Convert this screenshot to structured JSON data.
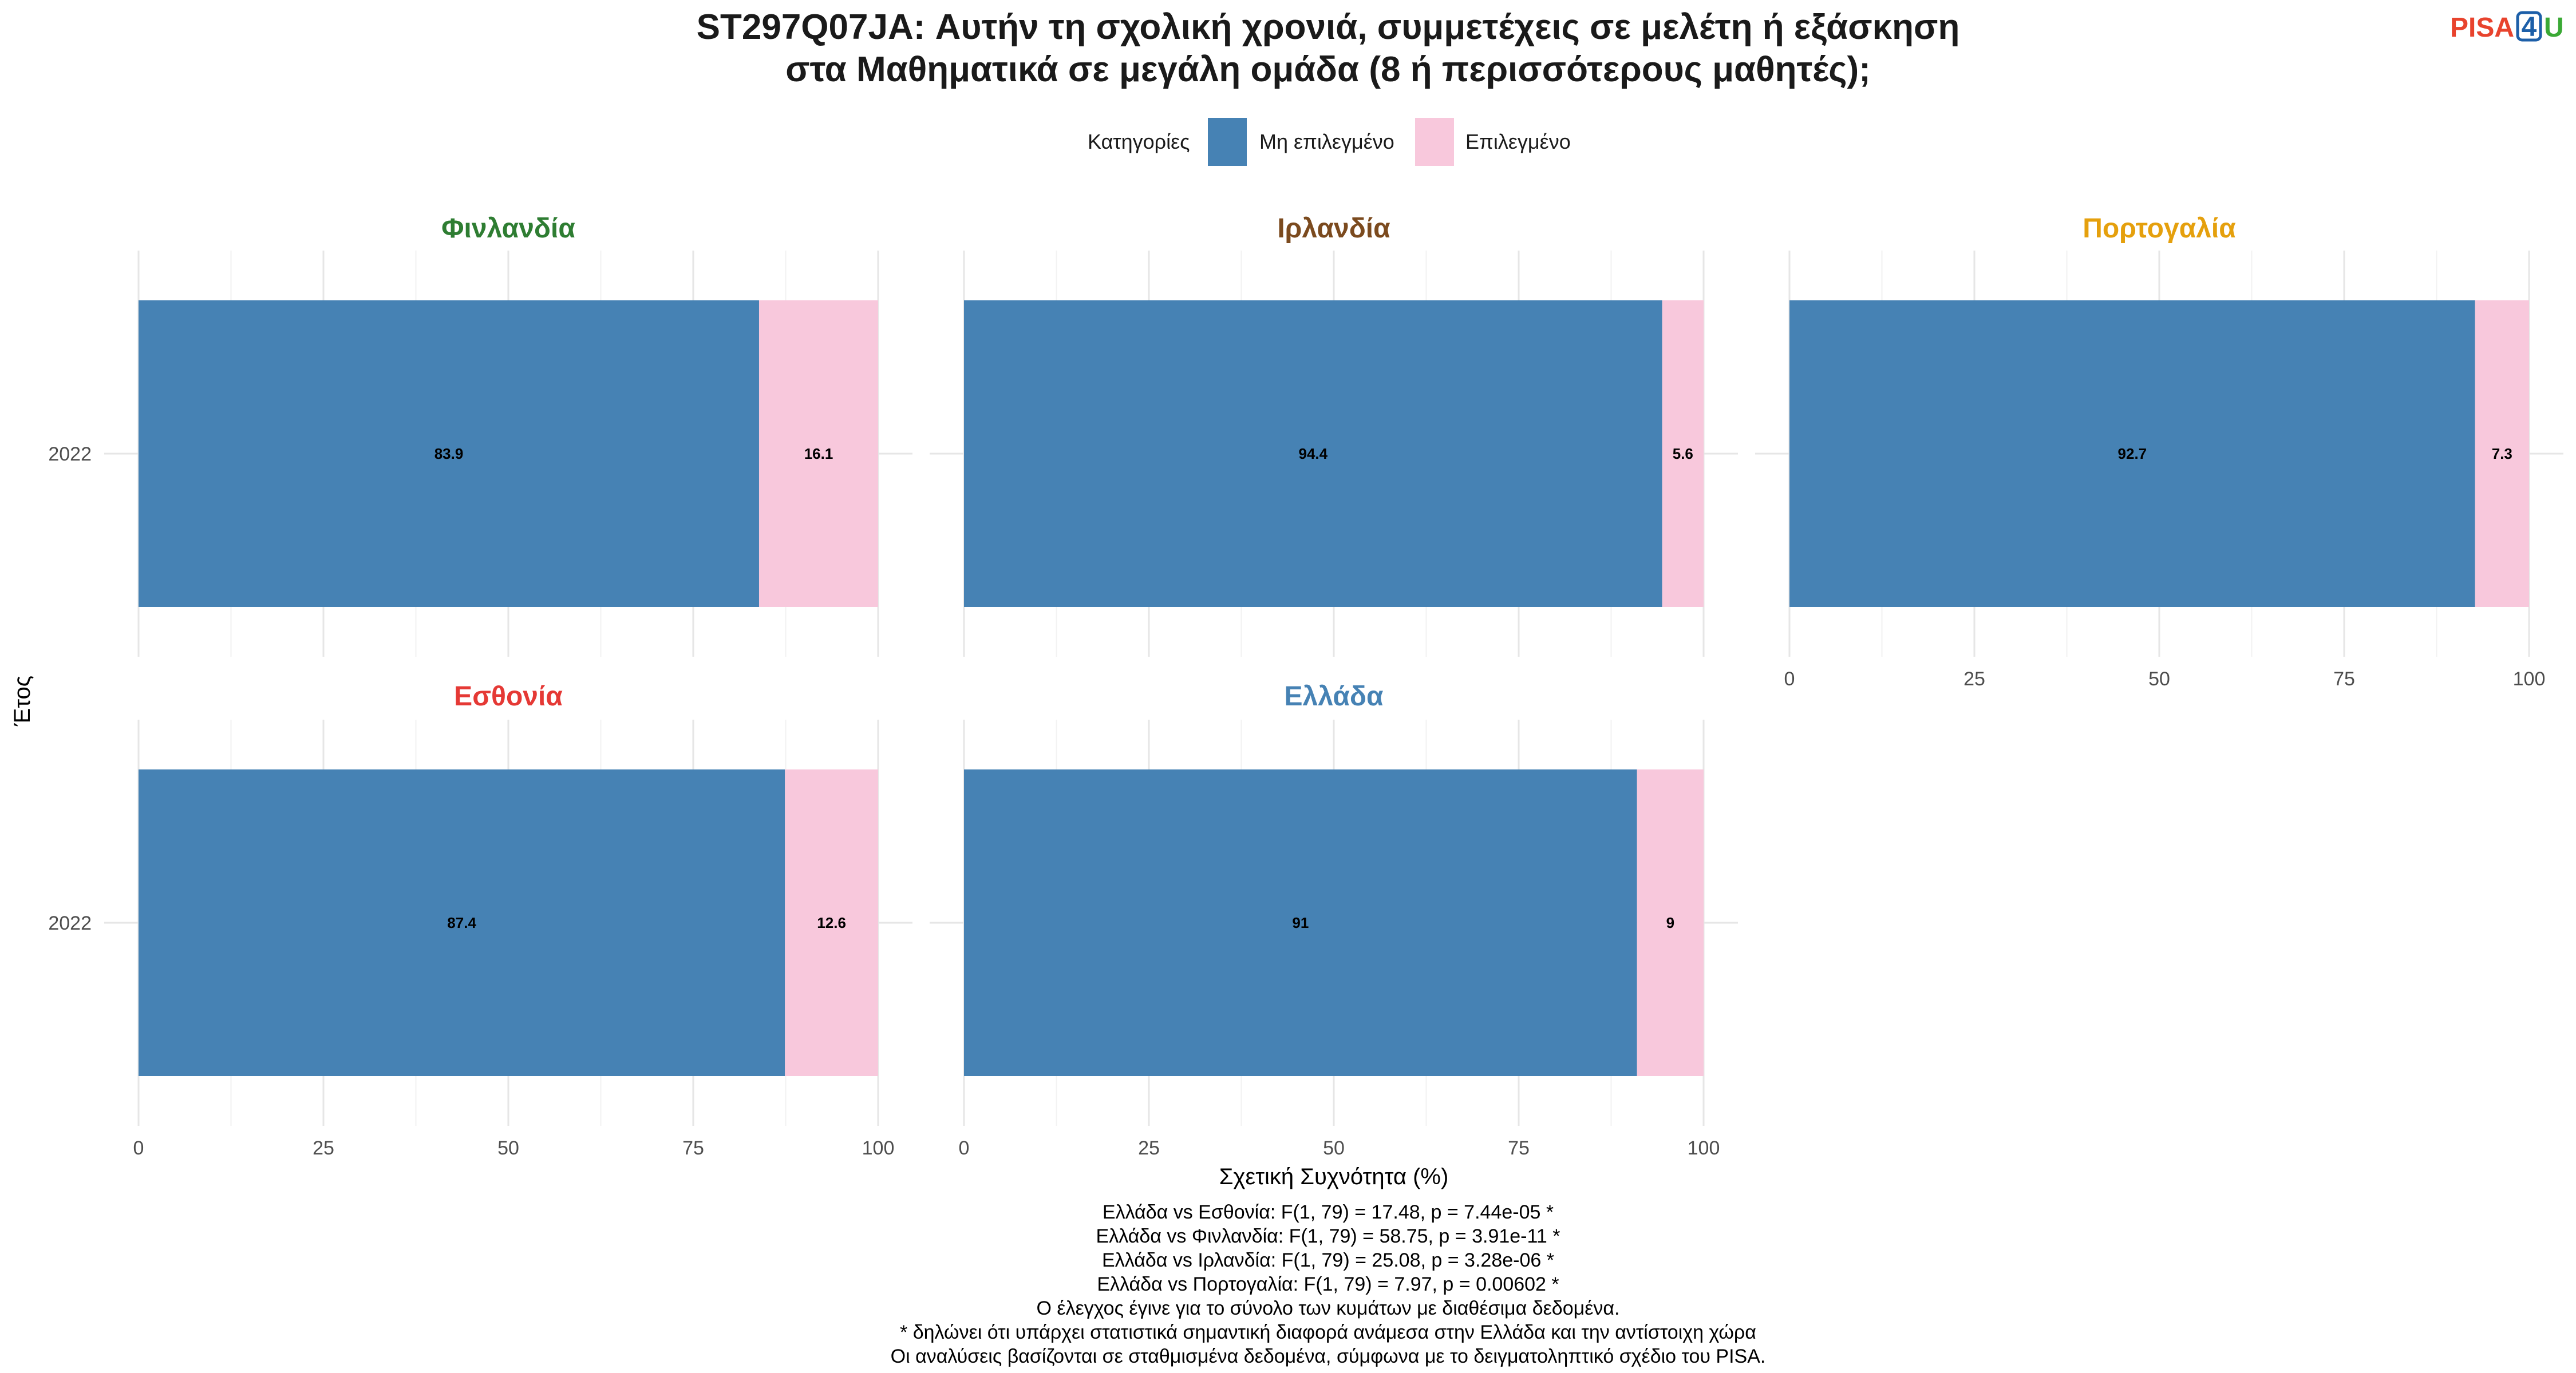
{
  "title_lines": [
    "ST297Q07JA: Αυτήν τη σχολική χρονιά, συμμετέχεις σε μελέτη ή εξάσκηση",
    "στα Μαθηματικά σε μεγάλη ομάδα (8 ή περισσότερους μαθητές);"
  ],
  "logo": {
    "part1": "PISA",
    "part2": "4",
    "part3": "U",
    "color1": "#e8432d",
    "color2": "#1d5fa8",
    "color3": "#3aa935"
  },
  "legend": {
    "title": "Κατηγορίες",
    "items": [
      {
        "label": "Μη επιλεγμένο",
        "color": "#4682b4"
      },
      {
        "label": "Επιλεγμένο",
        "color": "#f8c8dc"
      }
    ]
  },
  "axes": {
    "xlabel": "Σχετική Συχνότητα (%)",
    "ylabel": "Έτος"
  },
  "chart_data": {
    "type": "bar",
    "orientation": "horizontal",
    "stacked": true,
    "xlim": [
      0,
      100
    ],
    "xticks": [
      0,
      25,
      50,
      75,
      100
    ],
    "categories": [
      "2022"
    ],
    "series_names": [
      "Μη επιλεγμένο",
      "Επιλεγμένο"
    ],
    "panels": [
      {
        "name": "Φινλανδία",
        "color": "#2e7d32",
        "values": [
          83.9,
          16.1
        ],
        "labels": [
          "83.9",
          "16.1"
        ]
      },
      {
        "name": "Ιρλανδία",
        "color": "#7b4a1e",
        "values": [
          94.4,
          5.6
        ],
        "labels": [
          "94.4",
          "5.6"
        ]
      },
      {
        "name": "Πορτογαλία",
        "color": "#e5a00d",
        "values": [
          92.7,
          7.3
        ],
        "labels": [
          "92.7",
          "7.3"
        ]
      },
      {
        "name": "Εσθονία",
        "color": "#e53935",
        "values": [
          87.4,
          12.6
        ],
        "labels": [
          "87.4",
          "12.6"
        ]
      },
      {
        "name": "Ελλάδα",
        "color": "#4682b4",
        "values": [
          91,
          9
        ],
        "labels": [
          "91",
          "9"
        ]
      }
    ]
  },
  "notes": [
    "Ελλάδα vs Εσθονία: F(1, 79) = 17.48, p = 7.44e-05 *",
    "Ελλάδα vs Φινλανδία: F(1, 79) = 58.75, p = 3.91e-11 *",
    "Ελλάδα vs Ιρλανδία: F(1, 79) = 25.08, p = 3.28e-06 *",
    "Ελλάδα vs Πορτογαλία: F(1, 79) = 7.97, p = 0.00602 *",
    "Ο έλεγχος έγινε για το σύνολο των κυμάτων με διαθέσιμα δεδομένα.",
    "* δηλώνει ότι υπάρχει στατιστικά σημαντική διαφορά ανάμεσα στην Ελλάδα και την αντίστοιχη χώρα",
    "Οι αναλύσεις βασίζονται σε σταθμισμένα δεδομένα, σύμφωνα με το δειγματοληπτικό σχέδιο του PISA."
  ]
}
